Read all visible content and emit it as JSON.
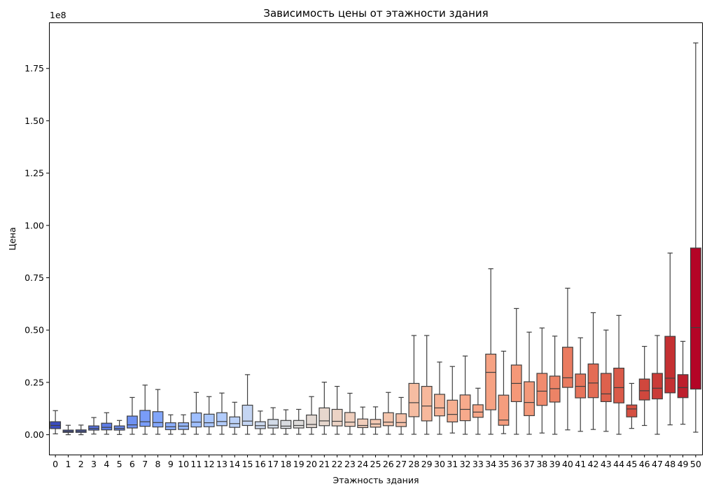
{
  "chart_data": {
    "type": "box",
    "title": "Зависимость цены от этажности здания",
    "xlabel": "Этажность здания",
    "ylabel": "Цена",
    "y_multiplier_label": "1e8",
    "ylim": [
      -0.095,
      1.97
    ],
    "y_ticks": [
      0.0,
      0.25,
      0.5,
      0.75,
      1.0,
      1.25,
      1.5,
      1.75
    ],
    "y_tick_labels": [
      "0.00",
      "0.25",
      "0.50",
      "0.75",
      "1.00",
      "1.25",
      "1.50",
      "1.75"
    ],
    "grid": false,
    "palette": "coolwarm",
    "categories": [
      "0",
      "1",
      "2",
      "3",
      "4",
      "5",
      "6",
      "7",
      "8",
      "9",
      "10",
      "11",
      "12",
      "13",
      "14",
      "15",
      "16",
      "17",
      "18",
      "19",
      "20",
      "21",
      "22",
      "23",
      "24",
      "25",
      "26",
      "27",
      "28",
      "29",
      "30",
      "31",
      "32",
      "33",
      "34",
      "35",
      "36",
      "37",
      "38",
      "39",
      "40",
      "41",
      "42",
      "43",
      "44",
      "45",
      "46",
      "47",
      "48",
      "49",
      "50"
    ],
    "boxes": [
      {
        "whislo": 0.004,
        "q1": 0.029,
        "med": 0.044,
        "q3": 0.062,
        "whishi": 0.115,
        "color": "#3b4cc0"
      },
      {
        "whislo": 0.0,
        "q1": 0.011,
        "med": 0.016,
        "q3": 0.022,
        "whishi": 0.045,
        "color": "#4358cb"
      },
      {
        "whislo": 0.0,
        "q1": 0.011,
        "med": 0.017,
        "q3": 0.023,
        "whishi": 0.046,
        "color": "#4b64d5"
      },
      {
        "whislo": 0.003,
        "q1": 0.022,
        "med": 0.03,
        "q3": 0.042,
        "whishi": 0.082,
        "color": "#5470de"
      },
      {
        "whislo": 0.002,
        "q1": 0.023,
        "med": 0.035,
        "q3": 0.055,
        "whishi": 0.105,
        "color": "#5d7ce6"
      },
      {
        "whislo": 0.001,
        "q1": 0.022,
        "med": 0.03,
        "q3": 0.042,
        "whishi": 0.068,
        "color": "#6687ed"
      },
      {
        "whislo": 0.002,
        "q1": 0.032,
        "med": 0.047,
        "q3": 0.089,
        "whishi": 0.178,
        "color": "#6f92f3"
      },
      {
        "whislo": 0.002,
        "q1": 0.04,
        "med": 0.062,
        "q3": 0.116,
        "whishi": 0.237,
        "color": "#799cf8"
      },
      {
        "whislo": 0.002,
        "q1": 0.037,
        "med": 0.058,
        "q3": 0.11,
        "whishi": 0.216,
        "color": "#82a6fb"
      },
      {
        "whislo": 0.002,
        "q1": 0.024,
        "med": 0.038,
        "q3": 0.057,
        "whishi": 0.095,
        "color": "#8caffe"
      },
      {
        "whislo": 0.002,
        "q1": 0.025,
        "med": 0.041,
        "q3": 0.057,
        "whishi": 0.095,
        "color": "#96b7ff"
      },
      {
        "whislo": 0.002,
        "q1": 0.037,
        "med": 0.06,
        "q3": 0.104,
        "whishi": 0.202,
        "color": "#9fbfff"
      },
      {
        "whislo": 0.002,
        "q1": 0.038,
        "med": 0.057,
        "q3": 0.098,
        "whishi": 0.182,
        "color": "#a9c6fd"
      },
      {
        "whislo": 0.002,
        "q1": 0.043,
        "med": 0.063,
        "q3": 0.105,
        "whishi": 0.199,
        "color": "#b2ccfb"
      },
      {
        "whislo": 0.002,
        "q1": 0.035,
        "med": 0.053,
        "q3": 0.085,
        "whishi": 0.155,
        "color": "#bbd1f8"
      },
      {
        "whislo": 0.002,
        "q1": 0.044,
        "med": 0.065,
        "q3": 0.141,
        "whishi": 0.287,
        "color": "#c4d5f3"
      },
      {
        "whislo": 0.002,
        "q1": 0.029,
        "med": 0.043,
        "q3": 0.062,
        "whishi": 0.113,
        "color": "#cbd8ee"
      },
      {
        "whislo": 0.002,
        "q1": 0.032,
        "med": 0.045,
        "q3": 0.073,
        "whishi": 0.129,
        "color": "#d2dbe8"
      },
      {
        "whislo": 0.002,
        "q1": 0.03,
        "med": 0.041,
        "q3": 0.068,
        "whishi": 0.119,
        "color": "#d9dce1"
      },
      {
        "whislo": 0.002,
        "q1": 0.032,
        "med": 0.044,
        "q3": 0.068,
        "whishi": 0.121,
        "color": "#dedcdb"
      },
      {
        "whislo": 0.002,
        "q1": 0.034,
        "med": 0.049,
        "q3": 0.094,
        "whishi": 0.182,
        "color": "#e3d9d3"
      },
      {
        "whislo": 0.002,
        "q1": 0.043,
        "med": 0.066,
        "q3": 0.128,
        "whishi": 0.251,
        "color": "#e7d7cd"
      },
      {
        "whislo": 0.002,
        "q1": 0.042,
        "med": 0.064,
        "q3": 0.121,
        "whishi": 0.231,
        "color": "#ecd3c5"
      },
      {
        "whislo": 0.002,
        "q1": 0.04,
        "med": 0.06,
        "q3": 0.106,
        "whishi": 0.198,
        "color": "#efcebd"
      },
      {
        "whislo": 0.002,
        "q1": 0.034,
        "med": 0.044,
        "q3": 0.075,
        "whishi": 0.132,
        "color": "#f1cdba"
      },
      {
        "whislo": 0.002,
        "q1": 0.036,
        "med": 0.051,
        "q3": 0.073,
        "whishi": 0.133,
        "color": "#f3c8b2"
      },
      {
        "whislo": 0.002,
        "q1": 0.043,
        "med": 0.06,
        "q3": 0.105,
        "whishi": 0.202,
        "color": "#f4c5ad"
      },
      {
        "whislo": 0.002,
        "q1": 0.039,
        "med": 0.058,
        "q3": 0.1,
        "whishi": 0.178,
        "color": "#f5c1a9"
      },
      {
        "whislo": 0.002,
        "q1": 0.086,
        "med": 0.153,
        "q3": 0.245,
        "whishi": 0.474,
        "color": "#f6bda2"
      },
      {
        "whislo": 0.002,
        "q1": 0.066,
        "med": 0.137,
        "q3": 0.231,
        "whishi": 0.474,
        "color": "#f7b89c"
      },
      {
        "whislo": 0.002,
        "q1": 0.09,
        "med": 0.128,
        "q3": 0.193,
        "whishi": 0.347,
        "color": "#f7b396"
      },
      {
        "whislo": 0.008,
        "q1": 0.061,
        "med": 0.097,
        "q3": 0.165,
        "whishi": 0.326,
        "color": "#f7af91"
      },
      {
        "whislo": 0.002,
        "q1": 0.067,
        "med": 0.121,
        "q3": 0.19,
        "whishi": 0.376,
        "color": "#f7aa8c"
      },
      {
        "whislo": 0.002,
        "q1": 0.083,
        "med": 0.108,
        "q3": 0.143,
        "whishi": 0.222,
        "color": "#f7a688"
      },
      {
        "whislo": 0.002,
        "q1": 0.119,
        "med": 0.298,
        "q3": 0.385,
        "whishi": 0.793,
        "color": "#f6a283"
      },
      {
        "whislo": 0.005,
        "q1": 0.045,
        "med": 0.07,
        "q3": 0.189,
        "whishi": 0.399,
        "color": "#f59d7e"
      },
      {
        "whislo": 0.002,
        "q1": 0.158,
        "med": 0.245,
        "q3": 0.333,
        "whishi": 0.603,
        "color": "#f59878"
      },
      {
        "whislo": 0.002,
        "q1": 0.091,
        "med": 0.154,
        "q3": 0.253,
        "whishi": 0.49,
        "color": "#f49a7b"
      },
      {
        "whislo": 0.008,
        "q1": 0.14,
        "med": 0.208,
        "q3": 0.293,
        "whishi": 0.51,
        "color": "#f08b6e"
      },
      {
        "whislo": 0.002,
        "q1": 0.156,
        "med": 0.22,
        "q3": 0.28,
        "whishi": 0.471,
        "color": "#ed8366"
      },
      {
        "whislo": 0.023,
        "q1": 0.226,
        "med": 0.272,
        "q3": 0.418,
        "whishi": 0.7,
        "color": "#ea7b60"
      },
      {
        "whislo": 0.016,
        "q1": 0.176,
        "med": 0.231,
        "q3": 0.29,
        "whishi": 0.463,
        "color": "#e7745b"
      },
      {
        "whislo": 0.025,
        "q1": 0.177,
        "med": 0.247,
        "q3": 0.338,
        "whishi": 0.583,
        "color": "#e36c55"
      },
      {
        "whislo": 0.016,
        "q1": 0.158,
        "med": 0.195,
        "q3": 0.293,
        "whishi": 0.5,
        "color": "#de614d"
      },
      {
        "whislo": 0.002,
        "q1": 0.152,
        "med": 0.225,
        "q3": 0.318,
        "whishi": 0.57,
        "color": "#da5a49"
      },
      {
        "whislo": 0.03,
        "q1": 0.085,
        "med": 0.123,
        "q3": 0.142,
        "whishi": 0.245,
        "color": "#d55042"
      },
      {
        "whislo": 0.044,
        "q1": 0.166,
        "med": 0.21,
        "q3": 0.266,
        "whishi": 0.422,
        "color": "#d0473d"
      },
      {
        "whislo": 0.002,
        "q1": 0.171,
        "med": 0.222,
        "q3": 0.293,
        "whishi": 0.474,
        "color": "#ca3b37"
      },
      {
        "whislo": 0.047,
        "q1": 0.2,
        "med": 0.27,
        "q3": 0.47,
        "whishi": 0.868,
        "color": "#c43032"
      },
      {
        "whislo": 0.05,
        "q1": 0.177,
        "med": 0.225,
        "q3": 0.287,
        "whishi": 0.446,
        "color": "#bd1f2d"
      },
      {
        "whislo": 0.012,
        "q1": 0.218,
        "med": 0.512,
        "q3": 0.892,
        "whishi": 1.872,
        "color": "#b40426"
      }
    ]
  }
}
